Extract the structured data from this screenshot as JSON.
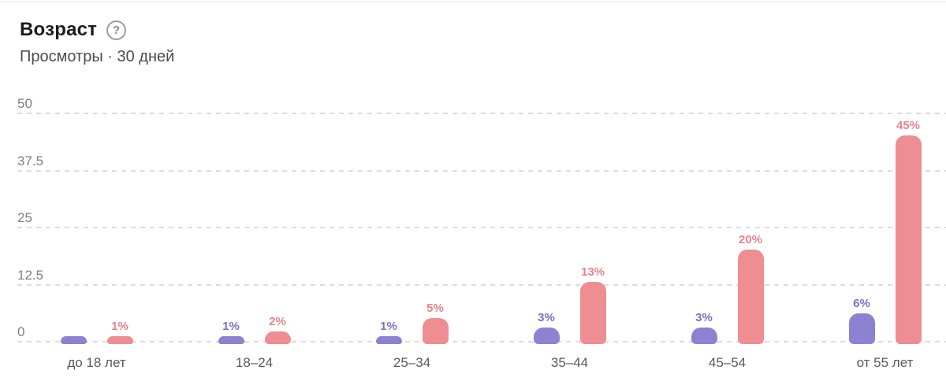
{
  "header": {
    "title": "Возраст",
    "help_icon": "question-mark",
    "help_glyph": "?",
    "subtitle": "Просмотры · 30 дней"
  },
  "colors": {
    "purple_bar": "#8b83d1",
    "pink_bar": "#ee8d92",
    "purple_label": "#7a71c6",
    "pink_label": "#e8838b",
    "gridline": "#dcdcdc",
    "axis_text": "#7f7f7f",
    "category_text": "#595959"
  },
  "chart_data": {
    "type": "bar",
    "title": "Возраст",
    "subtitle": "Просмотры · 30 дней",
    "categories": [
      "до 18 лет",
      "18–24",
      "25–34",
      "35–44",
      "45–54",
      "от 55 лет"
    ],
    "series": [
      {
        "name": "purple",
        "color": "#8b83d1",
        "label_color": "#7a71c6",
        "values": [
          0,
          1,
          1,
          3,
          3,
          6
        ],
        "labels": [
          "",
          "1%",
          "1%",
          "3%",
          "3%",
          "6%"
        ]
      },
      {
        "name": "pink",
        "color": "#ee8d92",
        "label_color": "#e8838b",
        "values": [
          1,
          2,
          5,
          13,
          20,
          45
        ],
        "labels": [
          "1%",
          "2%",
          "5%",
          "13%",
          "20%",
          "45%"
        ]
      }
    ],
    "ylim": [
      0,
      50
    ],
    "yticks": [
      "0",
      "12.5",
      "25",
      "37.5",
      "50"
    ],
    "ytick_values": [
      0,
      12.5,
      25,
      37.5,
      50
    ],
    "grid": "horizontal-dashed",
    "legend": "none"
  }
}
